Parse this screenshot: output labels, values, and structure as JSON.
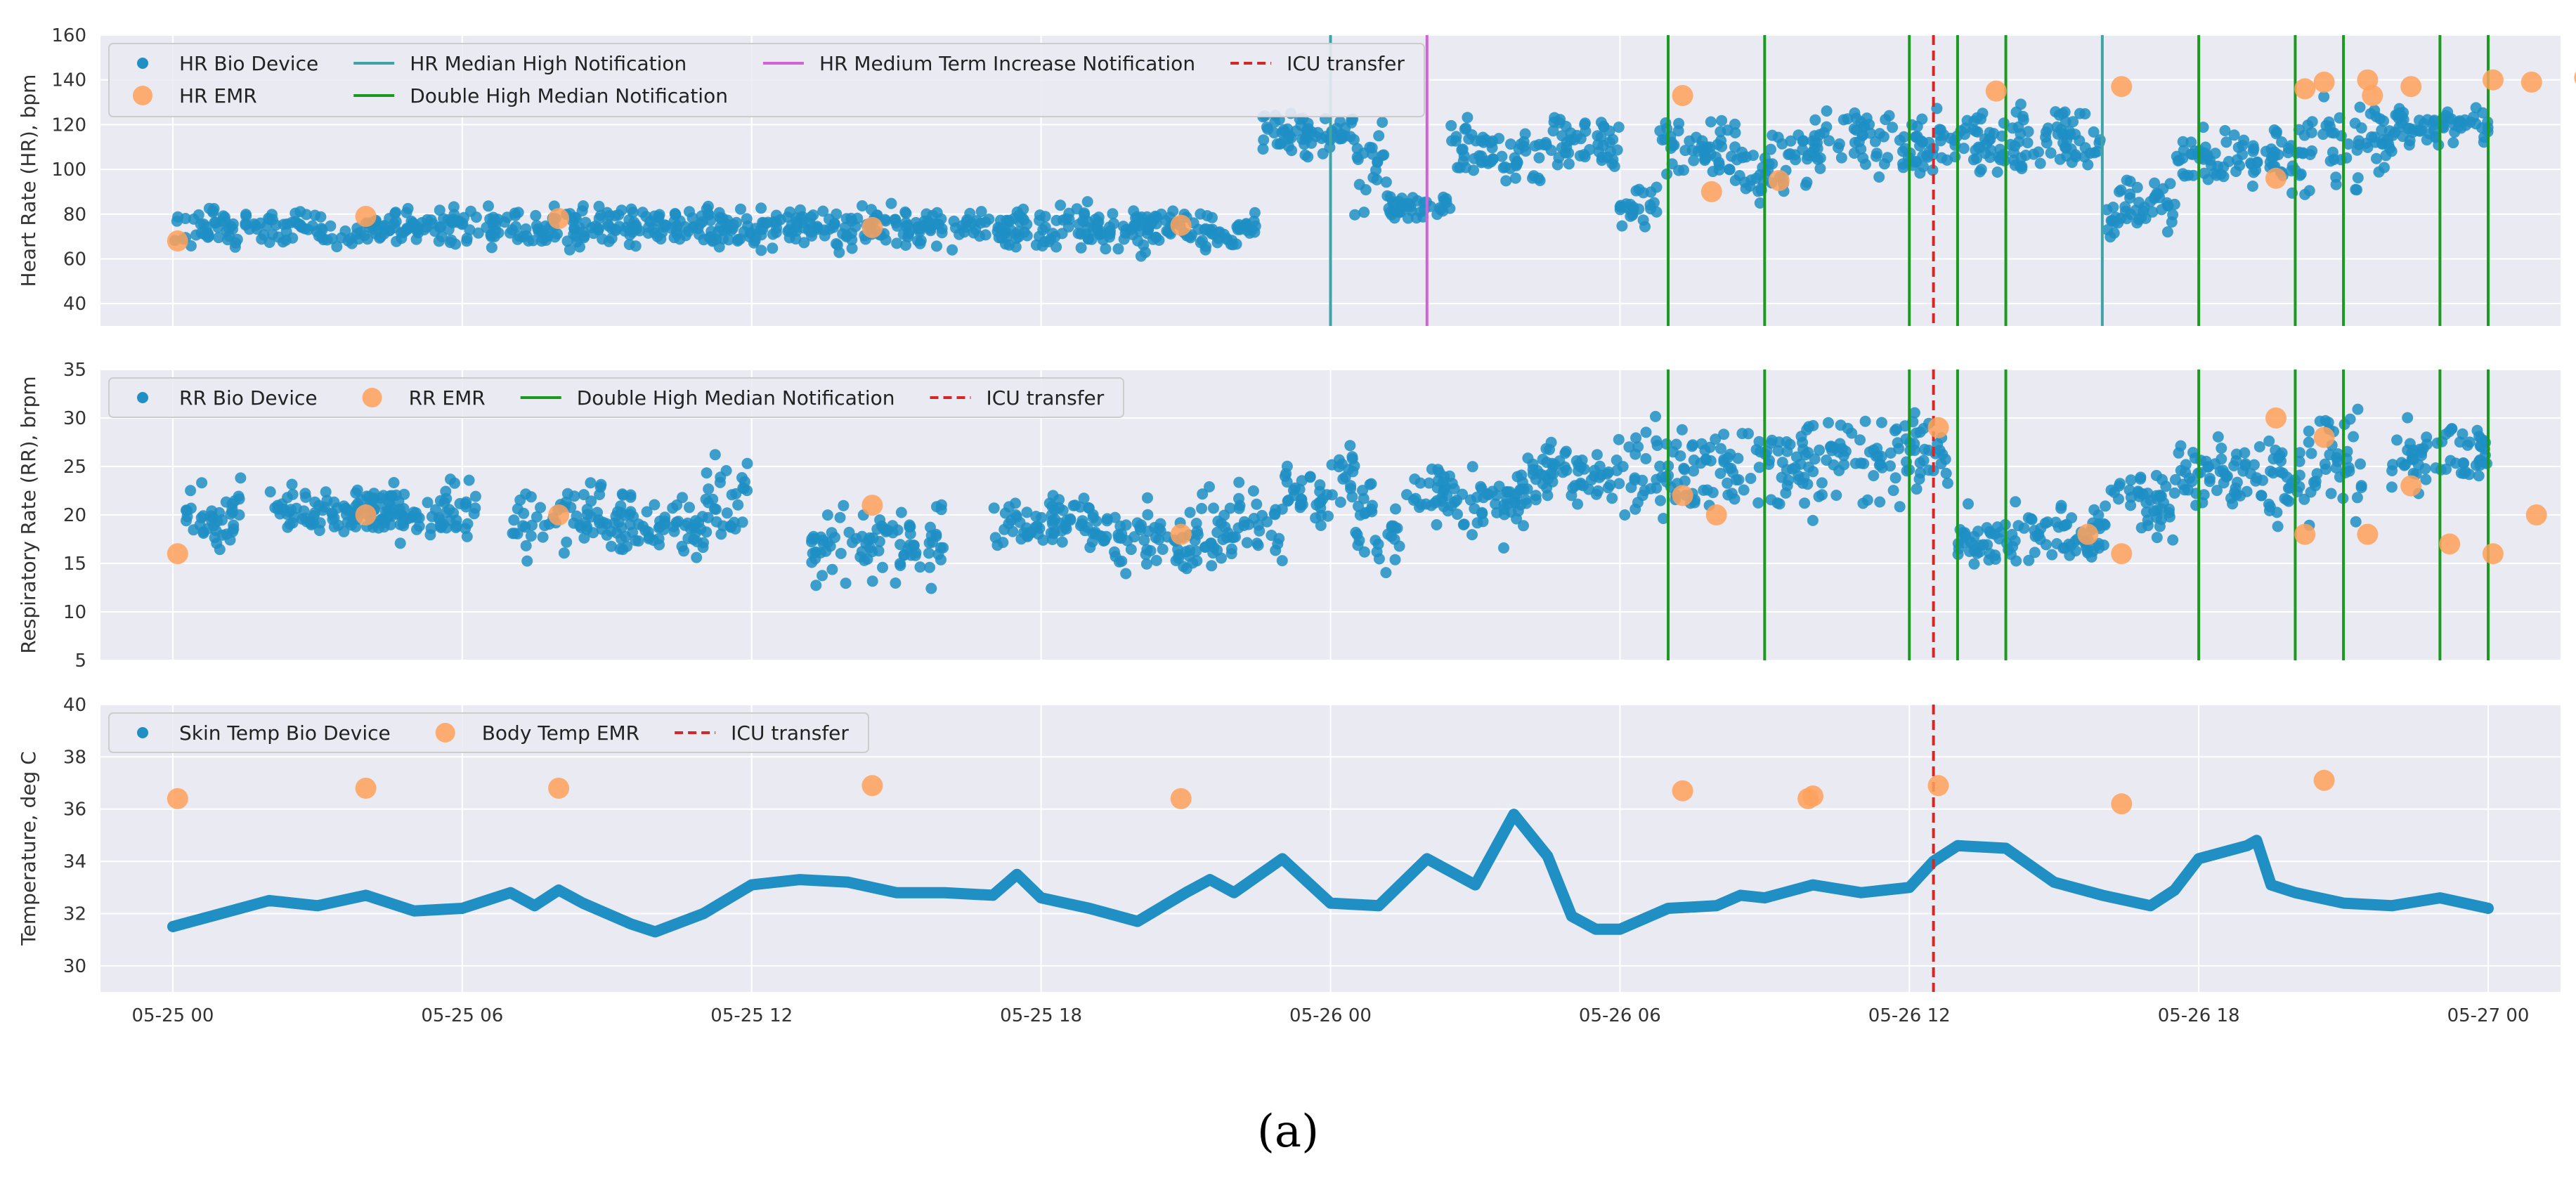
{
  "figure_label": "(a)",
  "colors": {
    "bio": "#1f8fc4",
    "emr": "#ffa15a",
    "median_high": "#3fa3a8",
    "double_high": "#1a9b1f",
    "medium_term": "#d263d6",
    "icu": "#d62728",
    "panel_bg": "#eaeaf2",
    "grid": "#ffffff"
  },
  "chart_data": [
    {
      "type": "scatter",
      "id": "hr",
      "ylabel": "Heart Rate (HR), bpm",
      "ylim": [
        30,
        160
      ],
      "yticks": [
        40,
        60,
        80,
        100,
        120,
        140,
        160
      ],
      "xlim": [
        -1.5,
        49.5
      ],
      "legend": {
        "placement": "top-left",
        "entries": [
          {
            "label": "HR Bio Device",
            "kind": "dot",
            "color": "#1f8fc4"
          },
          {
            "label": "HR EMR",
            "kind": "circle",
            "color": "#ffa15a"
          },
          {
            "label": "HR Median High Notification",
            "kind": "line",
            "color": "#3fa3a8"
          },
          {
            "label": "Double High Median Notification",
            "kind": "line",
            "color": "#1a9b1f"
          },
          {
            "label": "HR Medium Term Increase Notification",
            "kind": "line",
            "color": "#d263d6"
          },
          {
            "label": "ICU transfer",
            "kind": "dashed",
            "color": "#d62728"
          }
        ]
      },
      "bio_segments": [
        {
          "start": 0,
          "end": 21,
          "level": 74,
          "spread": 5
        },
        {
          "start": 21,
          "end": 22.5,
          "level": 73,
          "spread": 5
        },
        {
          "start": 22.5,
          "end": 24.5,
          "level": 117,
          "spread": 6
        },
        {
          "start": 24.5,
          "end": 25.2,
          "level": 100,
          "spread": 12
        },
        {
          "start": 25.2,
          "end": 26.5,
          "level": 83,
          "spread": 3
        },
        {
          "start": 26.5,
          "end": 28.5,
          "level": 106,
          "spread": 8
        },
        {
          "start": 28.5,
          "end": 30,
          "level": 113,
          "spread": 8
        },
        {
          "start": 30,
          "end": 30.8,
          "level": 83,
          "spread": 5
        },
        {
          "start": 30.8,
          "end": 32.5,
          "level": 110,
          "spread": 9
        },
        {
          "start": 32.5,
          "end": 33.5,
          "level": 98,
          "spread": 10
        },
        {
          "start": 33.5,
          "end": 38,
          "level": 111,
          "spread": 8
        },
        {
          "start": 38,
          "end": 40,
          "level": 113,
          "spread": 8
        },
        {
          "start": 40,
          "end": 41.5,
          "level": 83,
          "spread": 7
        },
        {
          "start": 41.5,
          "end": 44,
          "level": 106,
          "spread": 8
        },
        {
          "start": 44,
          "end": 46,
          "level": 110,
          "spread": 13
        },
        {
          "start": 46,
          "end": 48,
          "level": 120,
          "spread": 5
        }
      ],
      "emr": {
        "x": [
          0.1,
          4,
          8,
          14.5,
          20.9,
          31.3,
          31.9,
          33.3,
          37.8,
          40.4,
          43.6,
          44.2,
          44.6,
          45.5,
          45.6,
          46.4,
          48.1,
          48.9,
          50.0
        ],
        "y": [
          68,
          79,
          78,
          74,
          75,
          133,
          90,
          95,
          135,
          137,
          96,
          136,
          139,
          140,
          133,
          137,
          140,
          139,
          141
        ]
      },
      "vlines": [
        {
          "x": 24,
          "color": "#3fa3a8"
        },
        {
          "x": 26,
          "color": "#d263d6"
        },
        {
          "x": 40,
          "color": "#3fa3a8"
        },
        {
          "x": 31,
          "color": "#1a9b1f"
        },
        {
          "x": 33,
          "color": "#1a9b1f"
        },
        {
          "x": 36,
          "color": "#1a9b1f"
        },
        {
          "x": 37,
          "color": "#1a9b1f"
        },
        {
          "x": 38,
          "color": "#1a9b1f"
        },
        {
          "x": 42,
          "color": "#1a9b1f"
        },
        {
          "x": 44,
          "color": "#1a9b1f"
        },
        {
          "x": 45,
          "color": "#1a9b1f"
        },
        {
          "x": 47,
          "color": "#1a9b1f"
        },
        {
          "x": 48,
          "color": "#1a9b1f"
        }
      ],
      "icu_x": 36.5
    },
    {
      "type": "scatter",
      "id": "rr",
      "ylabel": "Respiratory Rate (RR), brpm",
      "ylim": [
        5,
        35
      ],
      "yticks": [
        5,
        10,
        15,
        20,
        25,
        30,
        35
      ],
      "xlim": [
        -1.5,
        49.5
      ],
      "legend": {
        "placement": "top-left",
        "entries": [
          {
            "label": "RR Bio Device",
            "kind": "dot",
            "color": "#1f8fc4"
          },
          {
            "label": "RR EMR",
            "kind": "circle",
            "color": "#ffa15a"
          },
          {
            "label": "Double High Median Notification",
            "kind": "line",
            "color": "#1a9b1f"
          },
          {
            "label": "ICU transfer",
            "kind": "dashed",
            "color": "#d62728"
          }
        ]
      },
      "bio_segments": [
        {
          "start": 0.2,
          "end": 1.5,
          "level": 20,
          "spread": 2
        },
        {
          "start": 2,
          "end": 4.8,
          "level": 20.5,
          "spread": 1.5
        },
        {
          "start": 4,
          "end": 6.3,
          "level": 20,
          "spread": 2
        },
        {
          "start": 7,
          "end": 9.5,
          "level": 19.5,
          "spread": 2
        },
        {
          "start": 9.5,
          "end": 11,
          "level": 18.5,
          "spread": 1.5
        },
        {
          "start": 11,
          "end": 12,
          "level": 21.5,
          "spread": 2.5
        },
        {
          "start": 13.2,
          "end": 14,
          "level": 17,
          "spread": 2
        },
        {
          "start": 14,
          "end": 16,
          "level": 17.5,
          "spread": 2.5
        },
        {
          "start": 17,
          "end": 19.5,
          "level": 19,
          "spread": 1.5
        },
        {
          "start": 19.5,
          "end": 21.3,
          "level": 17.5,
          "spread": 2
        },
        {
          "start": 21.3,
          "end": 23,
          "level": 19,
          "spread": 2.5
        },
        {
          "start": 23,
          "end": 24.5,
          "level": 23,
          "spread": 2
        },
        {
          "start": 24.5,
          "end": 25.5,
          "level": 19,
          "spread": 2.5
        },
        {
          "start": 25.5,
          "end": 28,
          "level": 21.5,
          "spread": 2
        },
        {
          "start": 28,
          "end": 30.5,
          "level": 24,
          "spread": 2
        },
        {
          "start": 30.5,
          "end": 35,
          "level": 25,
          "spread": 2.5
        },
        {
          "start": 35,
          "end": 36.8,
          "level": 26,
          "spread": 2.5
        },
        {
          "start": 37,
          "end": 40,
          "level": 18,
          "spread": 1.5
        },
        {
          "start": 40,
          "end": 41.5,
          "level": 21,
          "spread": 2
        },
        {
          "start": 41.5,
          "end": 43.5,
          "level": 24,
          "spread": 2
        },
        {
          "start": 43.5,
          "end": 45.5,
          "level": 25,
          "spread": 3
        },
        {
          "start": 46,
          "end": 48,
          "level": 26.5,
          "spread": 2
        }
      ],
      "emr": {
        "x": [
          0.1,
          4,
          8,
          14.5,
          20.9,
          31.3,
          32,
          36.6,
          39.7,
          40.4,
          43.6,
          44.2,
          44.6,
          45.5,
          46.4,
          47.2,
          48.1,
          49.0
        ],
        "y": [
          16,
          20,
          20,
          21,
          18,
          22,
          20,
          29,
          18,
          16,
          30,
          18,
          28,
          18,
          23,
          17,
          16,
          20
        ]
      },
      "vlines": [
        {
          "x": 31,
          "color": "#1a9b1f"
        },
        {
          "x": 33,
          "color": "#1a9b1f"
        },
        {
          "x": 36,
          "color": "#1a9b1f"
        },
        {
          "x": 37,
          "color": "#1a9b1f"
        },
        {
          "x": 38,
          "color": "#1a9b1f"
        },
        {
          "x": 42,
          "color": "#1a9b1f"
        },
        {
          "x": 44,
          "color": "#1a9b1f"
        },
        {
          "x": 45,
          "color": "#1a9b1f"
        },
        {
          "x": 47,
          "color": "#1a9b1f"
        },
        {
          "x": 48,
          "color": "#1a9b1f"
        }
      ],
      "icu_x": 36.5
    },
    {
      "type": "line",
      "id": "temp",
      "ylabel": "Temperature, deg C",
      "ylim": [
        29,
        40
      ],
      "yticks": [
        30,
        32,
        34,
        36,
        38,
        40
      ],
      "xlim": [
        -1.5,
        49.5
      ],
      "xticks": [
        0,
        6,
        12,
        18,
        24,
        30,
        36,
        42,
        48
      ],
      "xticklabels": [
        "05-25 00",
        "05-25 06",
        "05-25 12",
        "05-25 18",
        "05-26 00",
        "05-26 06",
        "05-26 12",
        "05-26 18",
        "05-27 00"
      ],
      "legend": {
        "placement": "top-left",
        "entries": [
          {
            "label": "Skin Temp Bio Device",
            "kind": "dot",
            "color": "#1f8fc4"
          },
          {
            "label": "Body Temp EMR",
            "kind": "circle",
            "color": "#ffa15a"
          },
          {
            "label": "ICU transfer",
            "kind": "dashed",
            "color": "#d62728"
          }
        ]
      },
      "bio_curve": {
        "x": [
          0,
          1,
          2,
          3,
          4,
          5,
          6,
          7,
          7.5,
          8,
          8.5,
          9.5,
          10,
          11,
          12,
          13,
          14,
          15,
          16,
          17,
          17.5,
          18,
          19,
          20,
          21,
          21.5,
          22,
          23,
          24,
          25,
          26,
          27,
          27.8,
          28.5,
          29,
          29.5,
          30,
          31,
          32,
          32.5,
          33,
          34,
          35,
          36,
          36.5,
          37,
          38,
          39,
          40,
          41,
          41.5,
          42,
          43,
          43.2,
          43.5,
          44,
          45,
          46,
          47,
          48
        ],
        "y": [
          31.5,
          32,
          32.5,
          32.3,
          32.7,
          32.1,
          32.2,
          32.8,
          32.3,
          32.9,
          32.4,
          31.6,
          31.3,
          32,
          33.1,
          33.3,
          33.2,
          32.8,
          32.8,
          32.7,
          33.5,
          32.6,
          32.2,
          31.7,
          32.8,
          33.3,
          32.8,
          34.1,
          32.4,
          32.3,
          34.1,
          33.1,
          35.8,
          34.2,
          31.9,
          31.4,
          31.4,
          32.2,
          32.3,
          32.7,
          32.6,
          33.1,
          32.8,
          33,
          34,
          34.6,
          34.5,
          33.2,
          32.7,
          32.3,
          32.9,
          34.1,
          34.6,
          34.8,
          33.1,
          32.8,
          32.4,
          32.3,
          32.6,
          32.2
        ]
      },
      "emr": {
        "x": [
          0.1,
          4,
          8,
          14.5,
          20.9,
          31.3,
          33.9,
          34.0,
          36.6,
          40.4,
          44.6
        ],
        "y": [
          36.4,
          36.8,
          36.8,
          36.9,
          36.4,
          36.7,
          36.4,
          36.5,
          36.9,
          36.2,
          37.1
        ]
      },
      "vlines": [],
      "icu_x": 36.5
    }
  ]
}
